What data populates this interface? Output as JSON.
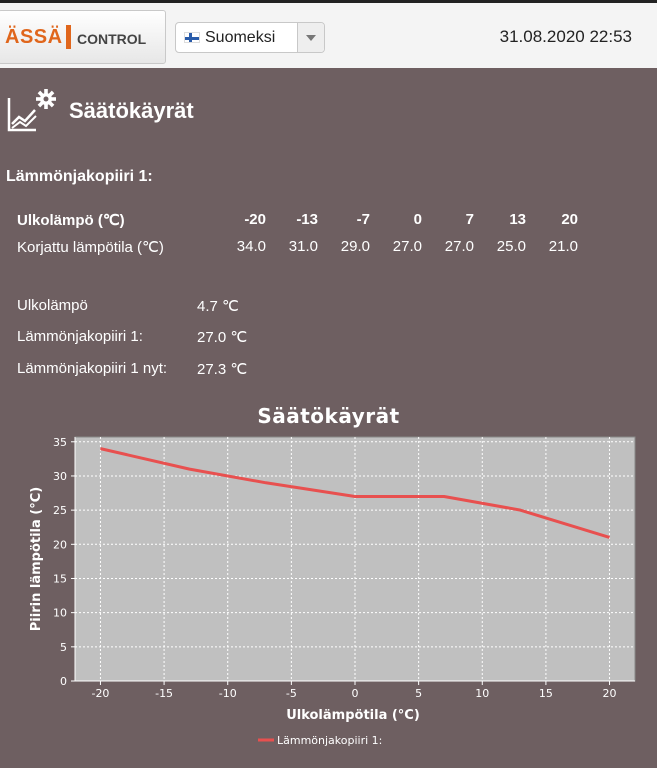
{
  "header": {
    "logo_brand": "ÄSSÄ",
    "logo_control": "CONTROL",
    "language": "Suomeksi",
    "datetime": "31.08.2020 22:53"
  },
  "page": {
    "title": "Säätökäyrät",
    "icon": "chart-settings-icon"
  },
  "circuit": {
    "title": "Lämmönjakopiiri 1:",
    "table": {
      "header_label": "Ulkolämpö (℃)",
      "header_values": [
        "-20",
        "-13",
        "-7",
        "0",
        "7",
        "13",
        "20"
      ],
      "row_label": "Korjattu lämpötila (℃)",
      "row_values": [
        "34.0",
        "31.0",
        "29.0",
        "27.0",
        "27.0",
        "25.0",
        "21.0"
      ]
    },
    "info": [
      {
        "label": "Ulkolämpö",
        "value": "4.7 ℃"
      },
      {
        "label": "Lämmönjakopiiri 1:",
        "value": "27.0 ℃"
      },
      {
        "label": "Lämmönjakopiiri 1 nyt:",
        "value": "27.3 ℃"
      }
    ]
  },
  "chart_data": {
    "type": "line",
    "title": "Säätökäyrät",
    "xlabel": "Ulkolämpötila (°C)",
    "ylabel": "Piirin lämpötila (°C)",
    "xlim": [
      -22,
      22
    ],
    "ylim": [
      0,
      35
    ],
    "xticks": [
      -20,
      -15,
      -10,
      -5,
      0,
      5,
      10,
      15,
      20
    ],
    "yticks": [
      0,
      5,
      10,
      15,
      20,
      25,
      30,
      35
    ],
    "grid": true,
    "legend": "bottom",
    "series": [
      {
        "name": "Lämmönjakopiiri 1:",
        "color": "#e8504f",
        "x": [
          -20,
          -13,
          -7,
          0,
          7,
          13,
          20
        ],
        "y": [
          34,
          31,
          29,
          27,
          27,
          25,
          21
        ]
      }
    ],
    "colors": {
      "plot_background": "#c0c0c0",
      "grid": "#ffffff"
    }
  }
}
